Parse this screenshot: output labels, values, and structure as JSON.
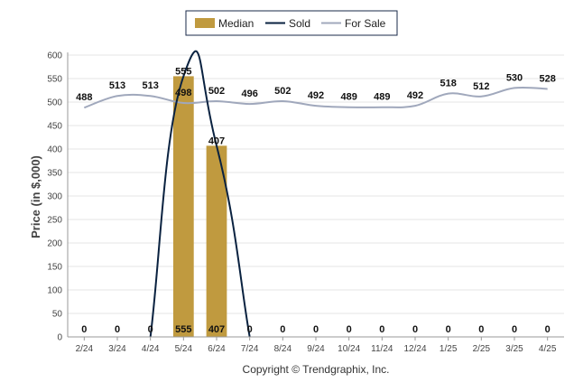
{
  "chart_data": {
    "type": "bar",
    "ylabel": "Price (in $,000)",
    "ylim": [
      0,
      600
    ],
    "yticks": [
      0,
      50,
      100,
      150,
      200,
      250,
      300,
      350,
      400,
      450,
      500,
      550,
      600
    ],
    "categories": [
      "2/24",
      "3/24",
      "4/24",
      "5/24",
      "6/24",
      "7/24",
      "8/24",
      "9/24",
      "10/24",
      "11/24",
      "12/24",
      "1/25",
      "2/25",
      "3/25",
      "4/25"
    ],
    "series": [
      {
        "name": "Median",
        "type": "bar",
        "color": "#c09a3f",
        "values": [
          0,
          0,
          0,
          555,
          407,
          0,
          0,
          0,
          0,
          0,
          0,
          0,
          0,
          0,
          0
        ]
      },
      {
        "name": "Sold",
        "type": "line",
        "color": "#0a2240",
        "values": [
          0,
          0,
          0,
          555,
          407,
          0,
          0,
          0,
          0,
          0,
          0,
          0,
          0,
          0,
          0
        ]
      },
      {
        "name": "For Sale",
        "type": "line",
        "color": "#a0a8bc",
        "values": [
          488,
          513,
          513,
          498,
          502,
          496,
          502,
          492,
          489,
          489,
          492,
          518,
          512,
          530,
          528
        ]
      }
    ],
    "grid": true,
    "legend": "top-center"
  },
  "copyright": "Copyright © Trendgraphix, Inc."
}
